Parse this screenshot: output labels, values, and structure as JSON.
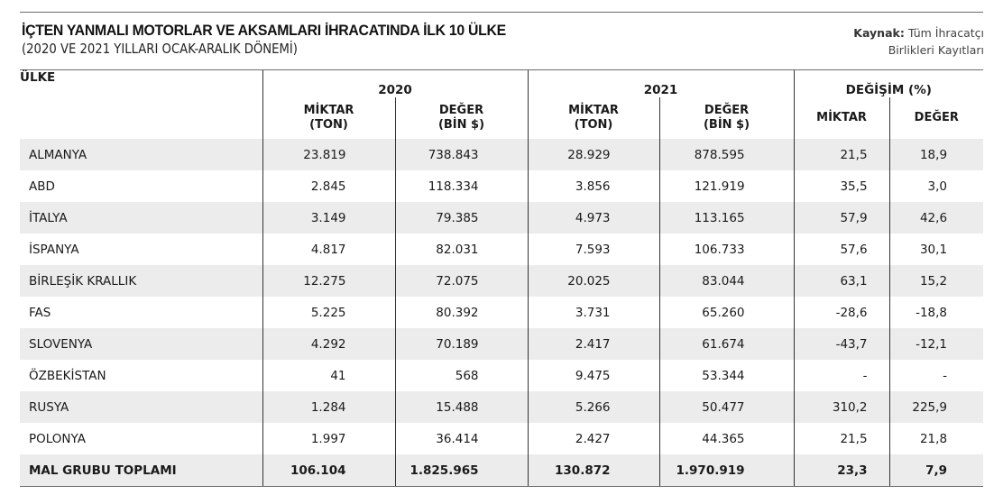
{
  "header": {
    "title": "İÇTEN YANMALI MOTORLAR VE AKSAMLARI İHRACATINDA İLK 10 ÜLKE",
    "subtitle": "(2020 VE 2021 YILLARI OCAK-ARALIK DÖNEMİ)",
    "source_label": "Kaynak:",
    "source_line1": "Tüm İhracatçı",
    "source_line2": "Birlikleri Kayıtları"
  },
  "table": {
    "country_header": "ÜLKE",
    "groups": {
      "y2020": "2020",
      "y2021": "2021",
      "change": "DEĞİŞİM (%)"
    },
    "subheaders": {
      "qty_2020_l1": "MİKTAR",
      "qty_2020_l2": "(TON)",
      "val_2020_l1": "DEĞER",
      "val_2020_l2": "(BİN $)",
      "qty_2021_l1": "MİKTAR",
      "qty_2021_l2": "(TON)",
      "val_2021_l1": "DEĞER",
      "val_2021_l2": "(BİN $)",
      "qty_change": "MİKTAR",
      "val_change": "DEĞER"
    },
    "rows": [
      {
        "country": "ALMANYA",
        "qty_2020": "23.819",
        "val_2020": "738.843",
        "qty_2021": "28.929",
        "val_2021": "878.595",
        "qty_change": "21,5",
        "val_change": "18,9"
      },
      {
        "country": "ABD",
        "qty_2020": "2.845",
        "val_2020": "118.334",
        "qty_2021": "3.856",
        "val_2021": "121.919",
        "qty_change": "35,5",
        "val_change": "3,0"
      },
      {
        "country": "İTALYA",
        "qty_2020": "3.149",
        "val_2020": "79.385",
        "qty_2021": "4.973",
        "val_2021": "113.165",
        "qty_change": "57,9",
        "val_change": "42,6"
      },
      {
        "country": "İSPANYA",
        "qty_2020": "4.817",
        "val_2020": "82.031",
        "qty_2021": "7.593",
        "val_2021": "106.733",
        "qty_change": "57,6",
        "val_change": "30,1"
      },
      {
        "country": "BİRLEŞİK KRALLIK",
        "qty_2020": "12.275",
        "val_2020": "72.075",
        "qty_2021": "20.025",
        "val_2021": "83.044",
        "qty_change": "63,1",
        "val_change": "15,2"
      },
      {
        "country": "FAS",
        "qty_2020": "5.225",
        "val_2020": "80.392",
        "qty_2021": "3.731",
        "val_2021": "65.260",
        "qty_change": "-28,6",
        "val_change": "-18,8"
      },
      {
        "country": "SLOVENYA",
        "qty_2020": "4.292",
        "val_2020": "70.189",
        "qty_2021": "2.417",
        "val_2021": "61.674",
        "qty_change": "-43,7",
        "val_change": "-12,1"
      },
      {
        "country": "ÖZBEKİSTAN",
        "qty_2020": "41",
        "val_2020": "568",
        "qty_2021": "9.475",
        "val_2021": "53.344",
        "qty_change": "-",
        "val_change": "-"
      },
      {
        "country": "RUSYA",
        "qty_2020": "1.284",
        "val_2020": "15.488",
        "qty_2021": "5.266",
        "val_2021": "50.477",
        "qty_change": "310,2",
        "val_change": "225,9"
      },
      {
        "country": "POLONYA",
        "qty_2020": "1.997",
        "val_2020": "36.414",
        "qty_2021": "2.427",
        "val_2021": "44.365",
        "qty_change": "21,5",
        "val_change": "21,8"
      }
    ],
    "total": {
      "country": "MAL GRUBU TOPLAMI",
      "qty_2020": "106.104",
      "val_2020": "1.825.965",
      "qty_2021": "130.872",
      "val_2021": "1.970.919",
      "qty_change": "23,3",
      "val_change": "7,9"
    }
  }
}
